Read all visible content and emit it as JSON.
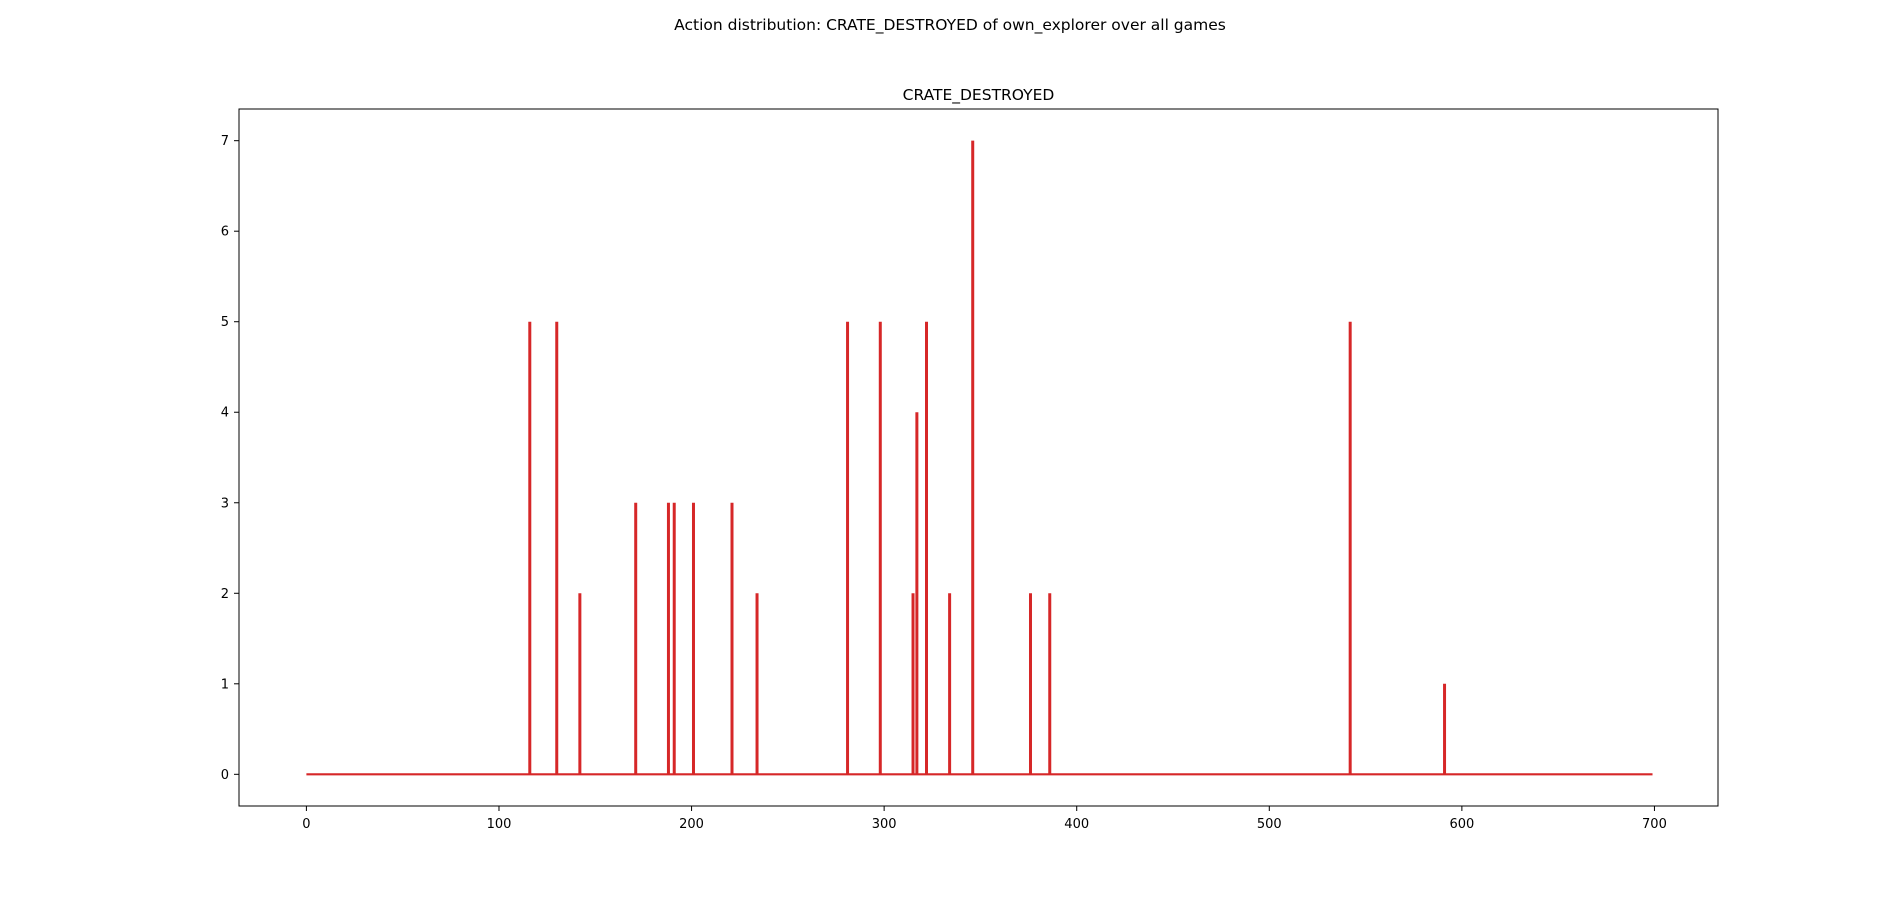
{
  "figure": {
    "suptitle": "Action distribution: CRATE_DESTROYED of own_explorer over all games"
  },
  "chart_data": {
    "type": "line",
    "title": "CRATE_DESTROYED",
    "xlabel": "",
    "ylabel": "",
    "xlim": [
      -35,
      733
    ],
    "ylim": [
      -0.35,
      7.35
    ],
    "xticks": [
      0,
      100,
      200,
      300,
      400,
      500,
      600,
      700
    ],
    "yticks": [
      0,
      1,
      2,
      3,
      4,
      5,
      6,
      7
    ],
    "grid": false,
    "x_range": [
      0,
      699
    ],
    "series": [
      {
        "color": "#d62728",
        "baseline": 0,
        "spikes": [
          {
            "x": 116,
            "y": 5
          },
          {
            "x": 130,
            "y": 5
          },
          {
            "x": 142,
            "y": 2
          },
          {
            "x": 171,
            "y": 3
          },
          {
            "x": 188,
            "y": 3
          },
          {
            "x": 191,
            "y": 3
          },
          {
            "x": 201,
            "y": 3
          },
          {
            "x": 221,
            "y": 3
          },
          {
            "x": 234,
            "y": 2
          },
          {
            "x": 281,
            "y": 5
          },
          {
            "x": 298,
            "y": 5
          },
          {
            "x": 315,
            "y": 2
          },
          {
            "x": 317,
            "y": 4
          },
          {
            "x": 322,
            "y": 5
          },
          {
            "x": 334,
            "y": 2
          },
          {
            "x": 346,
            "y": 7
          },
          {
            "x": 376,
            "y": 2
          },
          {
            "x": 386,
            "y": 2
          },
          {
            "x": 542,
            "y": 5
          },
          {
            "x": 591,
            "y": 1
          }
        ]
      }
    ]
  }
}
